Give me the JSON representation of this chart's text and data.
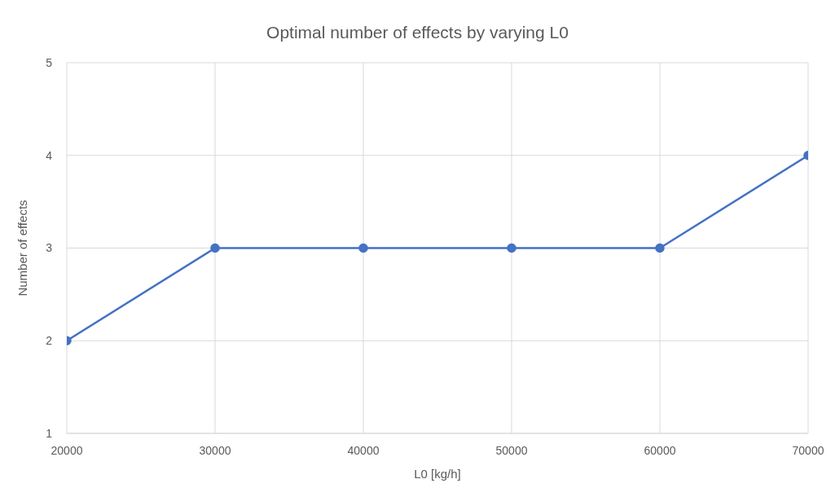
{
  "chart_data": {
    "type": "line",
    "title": "Optimal number of effects by varying L0",
    "xlabel": "L0 [kg/h]",
    "ylabel": "Number of effects",
    "x": [
      20000,
      30000,
      40000,
      50000,
      60000,
      70000
    ],
    "series": [
      {
        "color": "#4472c4",
        "values": [
          2,
          3,
          3,
          3,
          3,
          4
        ]
      }
    ],
    "xlim": [
      20000,
      70000
    ],
    "xticks": [
      20000,
      30000,
      40000,
      50000,
      60000,
      70000
    ],
    "ylim": [
      1,
      5
    ],
    "yticks": [
      1,
      2,
      3,
      4,
      5
    ],
    "grid": true,
    "marker": "circle",
    "line_style": "solid"
  }
}
